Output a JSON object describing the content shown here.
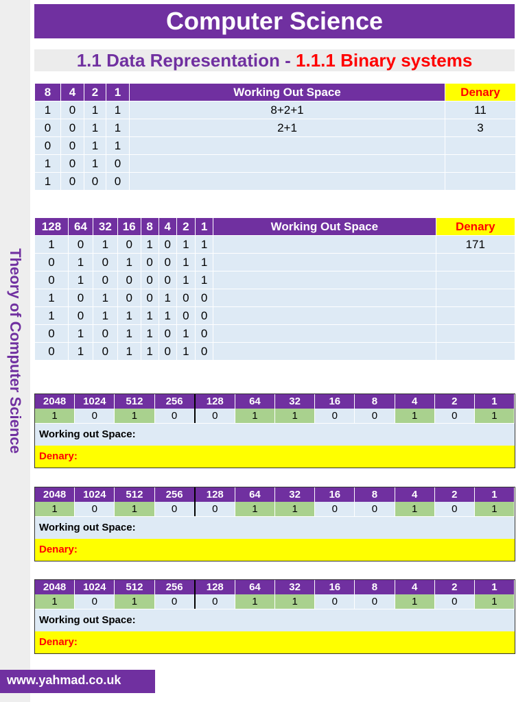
{
  "side_label": "Theory of Computer Science",
  "header": {
    "title": "Computer Science",
    "subtitle_part1": "1.1 Data Representation - ",
    "subtitle_part2": "1.1.1 Binary systems"
  },
  "table1": {
    "bits": [
      "8",
      "4",
      "2",
      "1"
    ],
    "work_header": "Working Out Space",
    "denary_header": "Denary",
    "rows": [
      {
        "bits": [
          "1",
          "0",
          "1",
          "1"
        ],
        "work": "8+2+1",
        "denary": "11"
      },
      {
        "bits": [
          "0",
          "0",
          "1",
          "1"
        ],
        "work": "2+1",
        "denary": "3"
      },
      {
        "bits": [
          "0",
          "0",
          "1",
          "1"
        ],
        "work": "",
        "denary": ""
      },
      {
        "bits": [
          "1",
          "0",
          "1",
          "0"
        ],
        "work": "",
        "denary": ""
      },
      {
        "bits": [
          "1",
          "0",
          "0",
          "0"
        ],
        "work": "",
        "denary": ""
      }
    ]
  },
  "table2": {
    "bits": [
      "128",
      "64",
      "32",
      "16",
      "8",
      "4",
      "2",
      "1"
    ],
    "work_header": "Working Out Space",
    "denary_header": "Denary",
    "rows": [
      {
        "bits": [
          "1",
          "0",
          "1",
          "0",
          "1",
          "0",
          "1",
          "1"
        ],
        "work": "",
        "denary": "171"
      },
      {
        "bits": [
          "0",
          "1",
          "0",
          "1",
          "0",
          "0",
          "1",
          "1"
        ],
        "work": "",
        "denary": ""
      },
      {
        "bits": [
          "0",
          "1",
          "0",
          "0",
          "0",
          "0",
          "1",
          "1"
        ],
        "work": "",
        "denary": ""
      },
      {
        "bits": [
          "1",
          "0",
          "1",
          "0",
          "0",
          "1",
          "0",
          "0"
        ],
        "work": "",
        "denary": ""
      },
      {
        "bits": [
          "1",
          "0",
          "1",
          "1",
          "1",
          "1",
          "0",
          "0"
        ],
        "work": "",
        "denary": ""
      },
      {
        "bits": [
          "0",
          "1",
          "0",
          "1",
          "1",
          "0",
          "1",
          "0"
        ],
        "work": "",
        "denary": ""
      },
      {
        "bits": [
          "0",
          "1",
          "0",
          "1",
          "1",
          "0",
          "1",
          "0"
        ],
        "work": "",
        "denary": ""
      }
    ]
  },
  "twelve_bit": {
    "headers": [
      "2048",
      "1024",
      "512",
      "256",
      "128",
      "64",
      "32",
      "16",
      "8",
      "4",
      "2",
      "1"
    ],
    "work_label": "Working out Space:",
    "denary_label": "Denary:",
    "blocks": [
      {
        "bits": [
          "1",
          "0",
          "1",
          "0",
          "0",
          "1",
          "1",
          "0",
          "0",
          "1",
          "0",
          "1"
        ]
      },
      {
        "bits": [
          "1",
          "0",
          "1",
          "0",
          "0",
          "1",
          "1",
          "0",
          "0",
          "1",
          "0",
          "1"
        ]
      },
      {
        "bits": [
          "1",
          "0",
          "1",
          "0",
          "0",
          "1",
          "1",
          "0",
          "0",
          "1",
          "0",
          "1"
        ]
      }
    ],
    "highlight_color": "#a9d18e"
  },
  "footer": {
    "url": "www.yahmad.co.uk"
  },
  "colors": {
    "purple": "#7030a0",
    "yellow": "#ffff00",
    "red": "#ff0000",
    "light_blue": "#deeaf5"
  }
}
